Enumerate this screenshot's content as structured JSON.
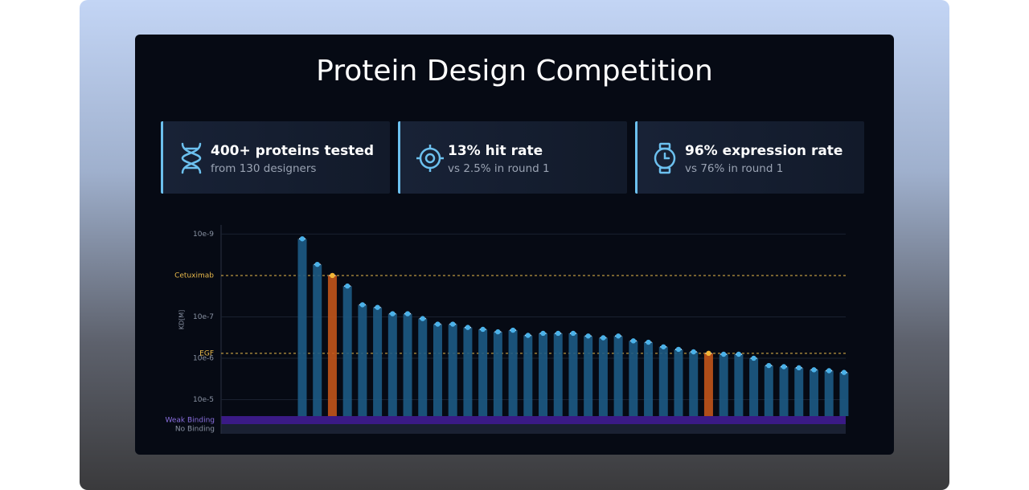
{
  "header": {
    "title": "Protein Design Competition"
  },
  "stats": [
    {
      "title": "400+ proteins tested",
      "subtitle": "from 130 designers"
    },
    {
      "title": "13% hit rate",
      "subtitle": "vs 2.5% in round 1"
    },
    {
      "title": "96% expression rate",
      "subtitle": "vs 76% in round 1"
    }
  ],
  "chart_data": {
    "type": "bar",
    "y_label": "KD[M]",
    "ylog": true,
    "ylim": [
      2.5e-05,
      6e-10
    ],
    "yticks": [
      {
        "value": 1e-09,
        "label": "10e-9"
      },
      {
        "value": 1e-07,
        "label": "10e-7"
      },
      {
        "value": 1e-06,
        "label": "10e-6"
      },
      {
        "value": 1e-05,
        "label": "10e-5"
      }
    ],
    "grid": true,
    "categories": [
      null,
      null,
      null,
      null,
      null,
      null,
      null,
      null,
      null,
      null,
      null,
      null,
      null,
      null,
      null,
      null,
      null,
      null,
      null,
      null,
      null,
      null,
      null,
      null,
      null,
      null,
      null,
      null,
      null,
      null,
      null,
      null,
      null,
      null,
      null,
      null,
      null
    ],
    "values": [
      1.3e-09,
      5.4e-09,
      1e-08,
      1.8e-08,
      5.1e-08,
      5.9e-08,
      8.4e-08,
      8.4e-08,
      1.1e-07,
      1.5e-07,
      1.5e-07,
      1.8e-07,
      2e-07,
      2.3e-07,
      2.1e-07,
      2.8e-07,
      2.5e-07,
      2.5e-07,
      2.5e-07,
      2.9e-07,
      3.2e-07,
      2.9e-07,
      3.8e-07,
      4.1e-07,
      5.3e-07,
      6.1e-07,
      7e-07,
      7.6e-07,
      8e-07,
      8e-07,
      1e-06,
      1.5e-06,
      1.6e-06,
      1.7e-06,
      1.9e-06,
      2e-06,
      2.2e-06
    ],
    "colors": [
      "#1d5a84",
      "#1d5a84",
      "#c2541a",
      "#1d5a84",
      "#1d5a84",
      "#1d5a84",
      "#1d5a84",
      "#1d5a84",
      "#1d5a84",
      "#1d5a84",
      "#1d5a84",
      "#1d5a84",
      "#1d5a84",
      "#1d5a84",
      "#1d5a84",
      "#1d5a84",
      "#1d5a84",
      "#1d5a84",
      "#1d5a84",
      "#1d5a84",
      "#1d5a84",
      "#1d5a84",
      "#1d5a84",
      "#1d5a84",
      "#1d5a84",
      "#1d5a84",
      "#1d5a84",
      "#c2541a",
      "#1d5a84",
      "#1d5a84",
      "#1d5a84",
      "#1d5a84",
      "#1d5a84",
      "#1d5a84",
      "#1d5a84",
      "#1d5a84",
      "#1d5a84"
    ],
    "reference_lines": [
      {
        "label": "Cetuximab",
        "value": 1e-08,
        "color": "#e8b94a"
      },
      {
        "label": "EGF",
        "value": 7.6e-07,
        "color": "#e8b94a"
      }
    ],
    "bands": [
      {
        "label": "Weak Binding",
        "color": "#3a1a86"
      },
      {
        "label": "No Binding",
        "color": "#1a2133"
      }
    ]
  }
}
